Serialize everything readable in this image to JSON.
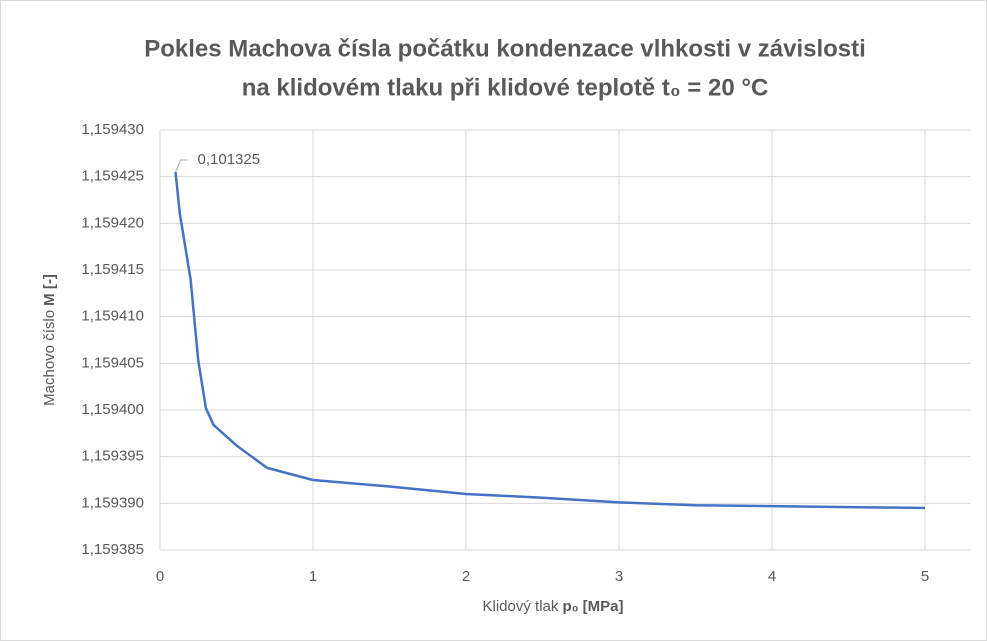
{
  "chart_data": {
    "type": "line",
    "title": [
      "Pokles Machova čísla počátku kondenzace vlhkosti v závislosti",
      "na klidovém tlaku při klidové teplotě t₀ = 20 °C"
    ],
    "xlabel": [
      "Klidový tlak ",
      "p₀ [MPa]"
    ],
    "ylabel": [
      "Machovo číslo ",
      "M [-]"
    ],
    "x": [
      0.101325,
      0.13,
      0.2,
      0.25,
      0.3,
      0.35,
      0.5,
      0.7,
      1,
      1.5,
      2,
      2.5,
      3,
      3.5,
      4,
      4.5,
      5
    ],
    "series": [
      {
        "name": "M",
        "color": "#4472c4",
        "values": [
          1.1594255,
          1.159421,
          1.159414,
          1.1594053,
          1.1594002,
          1.1593984,
          1.1593962,
          1.1593938,
          1.1593925,
          1.1593918,
          1.159391,
          1.1593906,
          1.1593901,
          1.1593898,
          1.1593897,
          1.1593896,
          1.1593895
        ]
      }
    ],
    "annotations": [
      {
        "text": "0,101325"
      }
    ],
    "xlim": [
      0,
      5
    ],
    "xticks": [
      0,
      1,
      2,
      3,
      4,
      5
    ],
    "ylim": [
      1.159385,
      1.15943
    ],
    "yticks": [
      {
        "value": 1.159385,
        "label": "1,159385"
      },
      {
        "value": 1.15939,
        "label": "1,159390"
      },
      {
        "value": 1.159395,
        "label": "1,159395"
      },
      {
        "value": 1.1594,
        "label": "1,159400"
      },
      {
        "value": 1.159405,
        "label": "1,159405"
      },
      {
        "value": 1.15941,
        "label": "1,159410"
      },
      {
        "value": 1.159415,
        "label": "1,159415"
      },
      {
        "value": 1.15942,
        "label": "1,159420"
      },
      {
        "value": 1.159425,
        "label": "1,159425"
      },
      {
        "value": 1.15943,
        "label": "1,159430"
      }
    ],
    "grid": true
  }
}
